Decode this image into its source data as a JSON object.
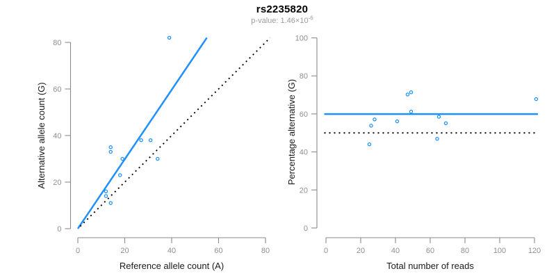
{
  "header": {
    "title": "rs2235820",
    "subtitle_prefix": "p-value: 1.46×10",
    "subtitle_exponent": "-6"
  },
  "colors": {
    "accent": "#1E90FF",
    "axis": "#8A8A8A",
    "tick_label": "#8F8F8F",
    "axis_title": "#1A1A1A",
    "reference": "#000000",
    "title": "#000000",
    "subtitle": "#9B9B9B"
  },
  "chart_data": [
    {
      "type": "scatter",
      "panel": "left",
      "xlabel": "Reference allele count (A)",
      "ylabel": "Alternative allele count (G)",
      "xlim": [
        0,
        80
      ],
      "ylim": [
        0,
        80
      ],
      "xticks": [
        0,
        20,
        40,
        60,
        80
      ],
      "yticks": [
        0,
        20,
        40,
        60,
        80
      ],
      "grid": false,
      "legend": null,
      "points": [
        [
          12,
          14
        ],
        [
          12,
          16
        ],
        [
          14,
          11
        ],
        [
          14,
          33
        ],
        [
          14,
          35
        ],
        [
          18,
          23
        ],
        [
          19,
          30
        ],
        [
          27,
          38
        ],
        [
          31,
          38
        ],
        [
          34,
          30
        ],
        [
          39,
          82
        ]
      ],
      "lines": [
        {
          "name": "fit-line",
          "color": "accent",
          "style": "solid",
          "x": [
            0,
            55
          ],
          "y": [
            0,
            82
          ]
        },
        {
          "name": "identity-line",
          "color": "reference",
          "style": "dotted",
          "x": [
            1,
            82
          ],
          "y": [
            1,
            82
          ]
        }
      ]
    },
    {
      "type": "scatter",
      "panel": "right",
      "xlabel": "Total number of reads",
      "ylabel": "Percentage alternative (G)",
      "xlim": [
        0,
        120
      ],
      "ylim": [
        0,
        100
      ],
      "xticks": [
        0,
        20,
        40,
        60,
        80,
        100,
        120
      ],
      "yticks": [
        0,
        20,
        40,
        60,
        80,
        100
      ],
      "grid": false,
      "legend": null,
      "points": [
        [
          25,
          44
        ],
        [
          26,
          53.8
        ],
        [
          28,
          57.1
        ],
        [
          41,
          56.1
        ],
        [
          47,
          70.2
        ],
        [
          49,
          71.4
        ],
        [
          49,
          61.2
        ],
        [
          64,
          46.9
        ],
        [
          65,
          58.5
        ],
        [
          69,
          55.1
        ],
        [
          121,
          67.8
        ]
      ],
      "lines": [
        {
          "name": "mean-line",
          "color": "accent",
          "style": "solid",
          "x": [
            -1,
            122
          ],
          "y": [
            59.9,
            59.9
          ]
        },
        {
          "name": "reference-line",
          "color": "reference",
          "style": "dotted",
          "x": [
            -1,
            120.5
          ],
          "y": [
            50,
            50
          ]
        }
      ]
    }
  ]
}
